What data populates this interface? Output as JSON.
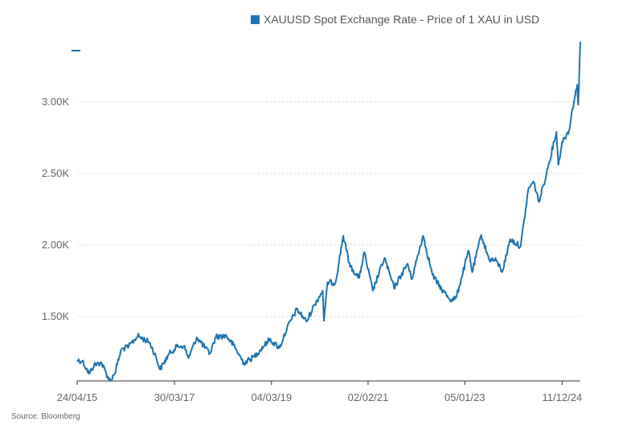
{
  "chart_data": {
    "type": "line",
    "legend": {
      "label": "XAUUSD Spot Exchange Rate - Price of 1 XAU in USD",
      "color": "#1f73b0",
      "position": "top"
    },
    "y_ticks": [
      {
        "value": 1500,
        "label": "1.50K"
      },
      {
        "value": 2000,
        "label": "2.00K"
      },
      {
        "value": 2500,
        "label": "2.50K"
      },
      {
        "value": 3000,
        "label": "3.00K"
      }
    ],
    "x_ticks": [
      {
        "value": "2015-04-24",
        "label": "24/04/15"
      },
      {
        "value": "2017-03-30",
        "label": "30/03/17"
      },
      {
        "value": "2019-03-04",
        "label": "04/03/19"
      },
      {
        "value": "2021-02-02",
        "label": "02/02/21"
      },
      {
        "value": "2023-01-05",
        "label": "05/01/23"
      },
      {
        "value": "2024-12-11",
        "label": "11/12/24"
      }
    ],
    "ylim": [
      1050,
      3420
    ],
    "xlim": [
      "2015-04-24",
      "2025-04-22"
    ],
    "grid": "horizontal-dotted",
    "source": "Source: Bloomberg",
    "series": [
      {
        "color": "#1f73b0",
        "points": [
          [
            "2015-04-24",
            1195
          ],
          [
            "2015-06-01",
            1190
          ],
          [
            "2015-07-20",
            1100
          ],
          [
            "2015-08-25",
            1160
          ],
          [
            "2015-10-15",
            1180
          ],
          [
            "2015-12-17",
            1050
          ],
          [
            "2016-01-20",
            1100
          ],
          [
            "2016-03-10",
            1270
          ],
          [
            "2016-05-02",
            1290
          ],
          [
            "2016-07-06",
            1365
          ],
          [
            "2016-09-30",
            1320
          ],
          [
            "2016-11-15",
            1220
          ],
          [
            "2016-12-15",
            1130
          ],
          [
            "2017-02-20",
            1240
          ],
          [
            "2017-04-17",
            1290
          ],
          [
            "2017-06-06",
            1295
          ],
          [
            "2017-07-10",
            1210
          ],
          [
            "2017-09-08",
            1355
          ],
          [
            "2017-12-12",
            1240
          ],
          [
            "2018-01-25",
            1360
          ],
          [
            "2018-04-11",
            1365
          ],
          [
            "2018-06-01",
            1300
          ],
          [
            "2018-08-16",
            1175
          ],
          [
            "2018-10-30",
            1220
          ],
          [
            "2019-01-30",
            1320
          ],
          [
            "2019-02-20",
            1340
          ],
          [
            "2019-05-01",
            1280
          ],
          [
            "2019-06-25",
            1420
          ],
          [
            "2019-09-04",
            1550
          ],
          [
            "2019-11-15",
            1465
          ],
          [
            "2020-01-08",
            1580
          ],
          [
            "2020-03-10",
            1680
          ],
          [
            "2020-03-19",
            1470
          ],
          [
            "2020-04-14",
            1740
          ],
          [
            "2020-06-10",
            1735
          ],
          [
            "2020-08-06",
            2065
          ],
          [
            "2020-09-24",
            1850
          ],
          [
            "2020-11-30",
            1770
          ],
          [
            "2021-01-05",
            1950
          ],
          [
            "2021-03-08",
            1680
          ],
          [
            "2021-06-01",
            1910
          ],
          [
            "2021-08-09",
            1700
          ],
          [
            "2021-11-16",
            1870
          ],
          [
            "2021-12-15",
            1760
          ],
          [
            "2022-03-08",
            2065
          ],
          [
            "2022-05-16",
            1790
          ],
          [
            "2022-07-21",
            1690
          ],
          [
            "2022-09-28",
            1615
          ],
          [
            "2022-11-03",
            1630
          ],
          [
            "2023-02-02",
            1960
          ],
          [
            "2023-02-28",
            1810
          ],
          [
            "2023-05-04",
            2070
          ],
          [
            "2023-06-29",
            1900
          ],
          [
            "2023-08-21",
            1890
          ],
          [
            "2023-10-05",
            1815
          ],
          [
            "2023-11-30",
            2040
          ],
          [
            "2024-02-14",
            1990
          ],
          [
            "2024-04-12",
            2400
          ],
          [
            "2024-05-20",
            2440
          ],
          [
            "2024-06-26",
            2300
          ],
          [
            "2024-08-20",
            2500
          ],
          [
            "2024-10-30",
            2790
          ],
          [
            "2024-11-14",
            2560
          ],
          [
            "2024-12-11",
            2720
          ],
          [
            "2025-01-30",
            2800
          ],
          [
            "2025-02-24",
            2950
          ],
          [
            "2025-03-31",
            3120
          ],
          [
            "2025-04-07",
            2980
          ],
          [
            "2025-04-22",
            3420
          ]
        ]
      }
    ]
  }
}
